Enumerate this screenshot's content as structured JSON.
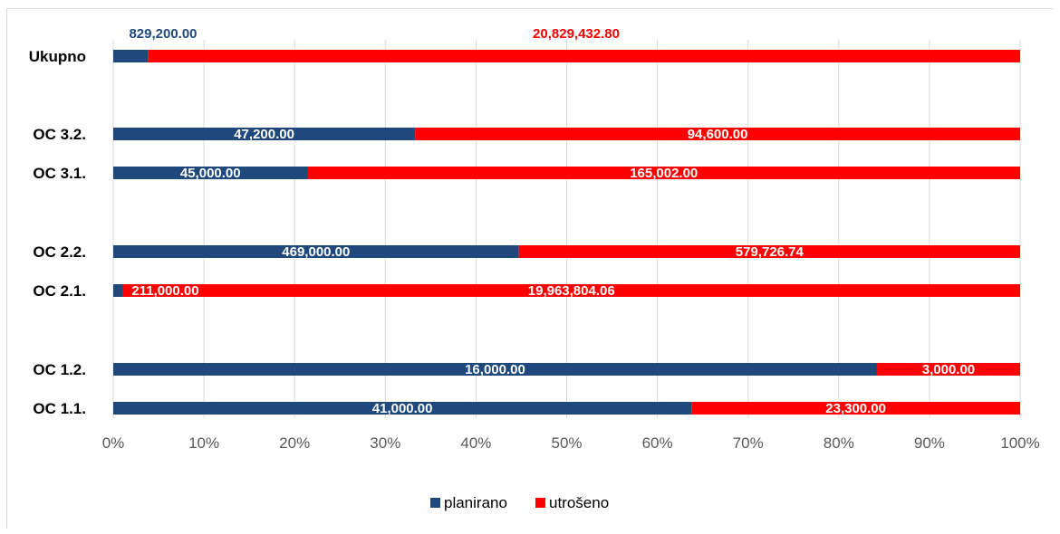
{
  "chart_data": {
    "type": "bar",
    "orientation": "horizontal",
    "stacking": "percent",
    "categories": [
      "Ukupno",
      "OC 3.2.",
      "OC 3.1.",
      "OC 2.2.",
      "OC 2.1.",
      "OC 1.2.",
      "OC 1.1."
    ],
    "series": [
      {
        "name": "planirano",
        "color": "#1f497d",
        "values": [
          829200.0,
          47200.0,
          45000.0,
          469000.0,
          211000.0,
          16000.0,
          41000.0
        ],
        "labels": [
          "829,200.00",
          "47,200.00",
          "45,000.00",
          "469,000.00",
          "211,000.00",
          "16,000.00",
          "41,000.00"
        ]
      },
      {
        "name": "utrošeno",
        "color": "#ff0000",
        "values": [
          20829432.8,
          94600.0,
          165002.0,
          579726.74,
          19963804.06,
          3000.0,
          23300.0
        ],
        "labels": [
          "20,829,432.80",
          "94,600.00",
          "165,002.00",
          "579,726.74",
          "19,963,804.06",
          "3,000.00",
          "23,300.00"
        ]
      }
    ],
    "x_ticks": [
      "0%",
      "10%",
      "20%",
      "30%",
      "40%",
      "50%",
      "60%",
      "70%",
      "80%",
      "90%",
      "100%"
    ],
    "xlim": [
      0,
      100
    ],
    "grid": true,
    "legend": "bottom"
  }
}
